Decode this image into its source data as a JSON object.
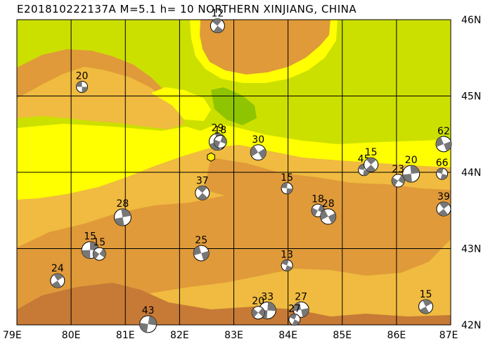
{
  "title": "E201810222137A  M=5.1  h= 10 NORTHERN XINJIANG, CHINA",
  "colors": {
    "lowland": "#cce000",
    "basin_green": "#8fc400",
    "plain_yellow": "#ffff00",
    "foothill": "#f0bb40",
    "mountain": "#e09a3a",
    "high_mountain": "#c67a36",
    "grid": "#000000",
    "epicenter": "#ffee00"
  },
  "lon_labels": [
    "79E",
    "80E",
    "81E",
    "82E",
    "83E",
    "84E",
    "85E",
    "86E",
    "87E"
  ],
  "lat_labels": [
    "46N",
    "45N",
    "44N",
    "43N",
    "42N"
  ],
  "events": [
    {
      "label": "20",
      "lon": 80.2,
      "lat": 45.12
    },
    {
      "label": "12",
      "lon": 82.7,
      "lat": 45.92
    },
    {
      "label": "29",
      "lon": 82.7,
      "lat": 44.4
    },
    {
      "label": "18",
      "lon": 82.75,
      "lat": 44.4
    },
    {
      "label": "30",
      "lon": 83.45,
      "lat": 44.26
    },
    {
      "label": "15",
      "lon": 83.98,
      "lat": 43.79
    },
    {
      "label": "37",
      "lon": 82.42,
      "lat": 43.73
    },
    {
      "label": "28",
      "lon": 80.95,
      "lat": 43.41
    },
    {
      "label": "18",
      "lon": 84.55,
      "lat": 43.5
    },
    {
      "label": "28",
      "lon": 84.74,
      "lat": 43.42
    },
    {
      "label": "45",
      "lon": 85.4,
      "lat": 44.03
    },
    {
      "label": "15",
      "lon": 85.53,
      "lat": 44.1
    },
    {
      "label": "20",
      "lon": 86.27,
      "lat": 43.98
    },
    {
      "label": "23",
      "lon": 86.03,
      "lat": 43.89
    },
    {
      "label": "62",
      "lon": 86.87,
      "lat": 44.37
    },
    {
      "label": "66",
      "lon": 86.84,
      "lat": 43.98
    },
    {
      "label": "39",
      "lon": 86.87,
      "lat": 43.52
    },
    {
      "label": "15",
      "lon": 80.35,
      "lat": 42.98
    },
    {
      "label": "15",
      "lon": 80.52,
      "lat": 42.93
    },
    {
      "label": "25",
      "lon": 82.4,
      "lat": 42.94
    },
    {
      "label": "13",
      "lon": 83.98,
      "lat": 42.78
    },
    {
      "label": "24",
      "lon": 79.75,
      "lat": 42.58
    },
    {
      "label": "33",
      "lon": 83.62,
      "lat": 42.19
    },
    {
      "label": "20",
      "lon": 83.45,
      "lat": 42.16
    },
    {
      "label": "27",
      "lon": 84.24,
      "lat": 42.2
    },
    {
      "label": "27",
      "lon": 84.12,
      "lat": 42.07
    },
    {
      "label": "15",
      "lon": 86.54,
      "lat": 42.24
    },
    {
      "label": "43",
      "lon": 81.42,
      "lat": 42.01
    }
  ],
  "epicenter": {
    "lon": 82.58,
    "lat": 44.2
  }
}
